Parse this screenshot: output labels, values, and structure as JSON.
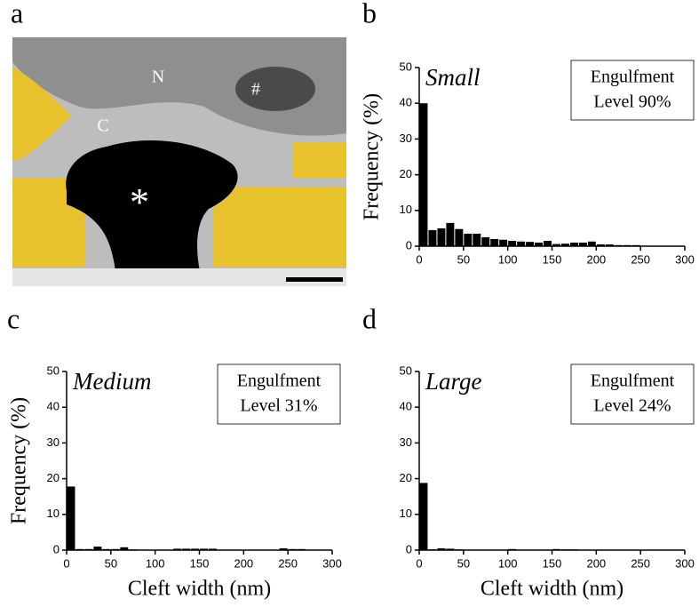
{
  "panel_labels": [
    "a",
    "b",
    "c",
    "d"
  ],
  "micrograph_labels": [
    "N",
    "#",
    "C",
    "*"
  ],
  "chart_data": [
    {
      "type": "histogram",
      "label": "Small",
      "note": [
        "Engulfment",
        "Level 90%"
      ],
      "ylabel": "Frequency (%)",
      "color": "#000000",
      "bins": [
        0,
        10,
        20,
        30,
        40,
        50,
        60,
        70,
        80,
        90,
        100,
        110,
        120,
        130,
        140,
        150,
        160,
        170,
        180,
        190,
        200,
        210,
        220,
        230,
        240,
        250,
        260,
        270,
        280,
        290,
        300
      ],
      "values": [
        40,
        4.5,
        5,
        6.5,
        4.8,
        3.5,
        3.5,
        2.5,
        2,
        1.8,
        1.5,
        1.3,
        1.2,
        1,
        1.5,
        0.6,
        0.7,
        1,
        1,
        1.3,
        0.5,
        0.5,
        0.3,
        0.3,
        0.3,
        0.1,
        0,
        0,
        0,
        0
      ],
      "xlim": [
        0,
        300
      ],
      "ylim": [
        0,
        50
      ],
      "xticks": [
        0,
        50,
        100,
        150,
        200,
        250,
        300
      ],
      "yticks": [
        0,
        10,
        20,
        30,
        40,
        50
      ]
    },
    {
      "type": "histogram",
      "label": "Medium",
      "note": [
        "Engulfment",
        "Level 31%"
      ],
      "ylabel": "Frequency (%)",
      "xlabel": "Cleft width (nm)",
      "color": "#000000",
      "bins": [
        0,
        10,
        20,
        30,
        40,
        50,
        60,
        70,
        80,
        90,
        100,
        110,
        120,
        130,
        140,
        150,
        160,
        170,
        180,
        190,
        200,
        210,
        220,
        230,
        240,
        250,
        260,
        270,
        280,
        290,
        300
      ],
      "values": [
        17.8,
        0.3,
        0.3,
        1,
        0.3,
        0.3,
        0.8,
        0.2,
        0,
        0,
        0,
        0,
        0.4,
        0.4,
        0.4,
        0.4,
        0.4,
        0,
        0,
        0,
        0,
        0,
        0,
        0,
        0.5,
        0.3,
        0.3,
        0,
        0,
        0
      ],
      "xlim": [
        0,
        300
      ],
      "ylim": [
        0,
        50
      ],
      "xticks": [
        0,
        50,
        100,
        150,
        200,
        250,
        300
      ],
      "yticks": [
        0,
        10,
        20,
        30,
        40,
        50
      ]
    },
    {
      "type": "histogram",
      "label": "Large",
      "note": [
        "Engulfment",
        "Level 24%"
      ],
      "xlabel": "Cleft width (nm)",
      "color": "#000000",
      "bins": [
        0,
        10,
        20,
        30,
        40,
        50,
        60,
        70,
        80,
        90,
        100,
        110,
        120,
        130,
        140,
        150,
        160,
        170,
        180,
        190,
        200,
        210,
        220,
        230,
        240,
        250,
        260,
        270,
        280,
        290,
        300
      ],
      "values": [
        18.8,
        0.2,
        0.5,
        0.4,
        0.2,
        0,
        0,
        0,
        0,
        0,
        0.3,
        0,
        0,
        0,
        0,
        0.3,
        0.2,
        0.2,
        0,
        0,
        0,
        0,
        0,
        0,
        0,
        0,
        0,
        0,
        0,
        0
      ],
      "xlim": [
        0,
        300
      ],
      "ylim": [
        0,
        50
      ],
      "xticks": [
        0,
        50,
        100,
        150,
        200,
        250,
        300
      ],
      "yticks": [
        0,
        10,
        20,
        30,
        40,
        50
      ]
    }
  ]
}
